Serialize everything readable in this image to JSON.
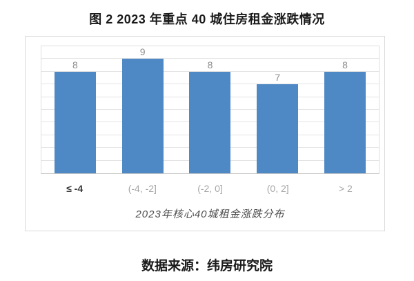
{
  "figure": {
    "title": "图 2  2023 年重点 40 城住房租金涨跌情况",
    "caption": "数据来源：纬房研究院"
  },
  "chart_data": {
    "type": "bar",
    "categories": [
      "≤ -4",
      "(-4, -2]",
      "(-2, 0]",
      "(0, 2]",
      "> 2"
    ],
    "values": [
      8,
      9,
      8,
      7,
      8
    ],
    "title": "图 2  2023 年重点 40 城住房租金涨跌情况",
    "xlabel": "2023年核心40城租金涨跌分布",
    "ylabel": "",
    "ylim": [
      0,
      10
    ],
    "gridline_step": 1,
    "grid": true,
    "legend": "none",
    "show_data_labels": true,
    "bar_color": "#4e89c6",
    "data_label_color": "#8c8c8c",
    "category_label_color": "#a6a6a6",
    "first_category_label_color": "#3a3a3a"
  }
}
